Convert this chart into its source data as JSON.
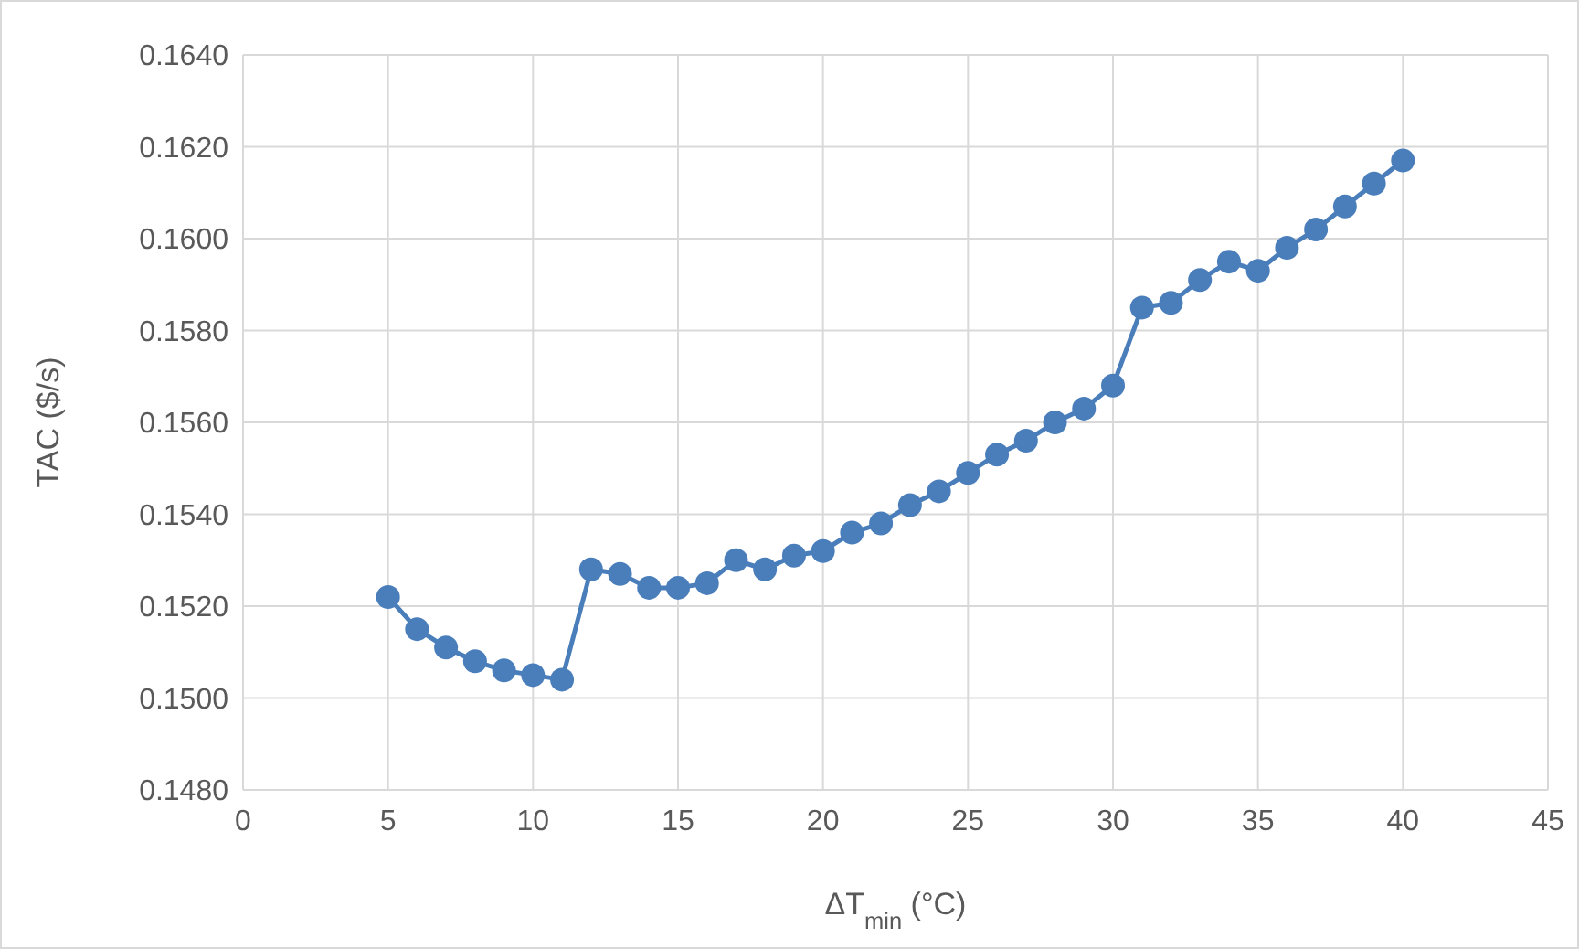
{
  "chart_data": {
    "type": "line",
    "xlabel": "ΔT$_{min}$ (°C)",
    "ylabel": "TAC ($/s)",
    "x": [
      5,
      6,
      7,
      8,
      9,
      10,
      11,
      12,
      13,
      14,
      15,
      16,
      17,
      18,
      19,
      20,
      21,
      22,
      23,
      24,
      25,
      26,
      27,
      28,
      29,
      30,
      31,
      32,
      33,
      34,
      35,
      36,
      37,
      38,
      39,
      40
    ],
    "series": [
      {
        "color": "#4a7ebb",
        "values": [
          0.1522,
          0.1515,
          0.1511,
          0.1508,
          0.1506,
          0.1505,
          0.1504,
          0.1528,
          0.1527,
          0.1524,
          0.1524,
          0.1525,
          0.153,
          0.1528,
          0.1531,
          0.1532,
          0.1536,
          0.1538,
          0.1542,
          0.1545,
          0.1549,
          0.1553,
          0.1556,
          0.156,
          0.1563,
          0.1568,
          0.1585,
          0.1586,
          0.1591,
          0.1595,
          0.1593,
          0.1598,
          0.1602,
          0.1607,
          0.1612,
          0.1617
        ]
      }
    ],
    "xlim": [
      0,
      45
    ],
    "xticks": [
      0,
      5,
      10,
      15,
      20,
      25,
      30,
      35,
      40,
      45
    ],
    "ylim": [
      0.148,
      0.164
    ],
    "yticks": [
      {
        "value": 0.148,
        "label": "0.1480"
      },
      {
        "value": 0.15,
        "label": "0.1500"
      },
      {
        "value": 0.152,
        "label": "0.1520"
      },
      {
        "value": 0.154,
        "label": "0.1540"
      },
      {
        "value": 0.156,
        "label": "0.1560"
      },
      {
        "value": 0.158,
        "label": "0.1580"
      },
      {
        "value": 0.16,
        "label": "0.1600"
      },
      {
        "value": 0.162,
        "label": "0.1620"
      },
      {
        "value": 0.164,
        "label": "0.1640"
      }
    ],
    "grid": true,
    "marker": "circle",
    "line_style": "solid"
  }
}
